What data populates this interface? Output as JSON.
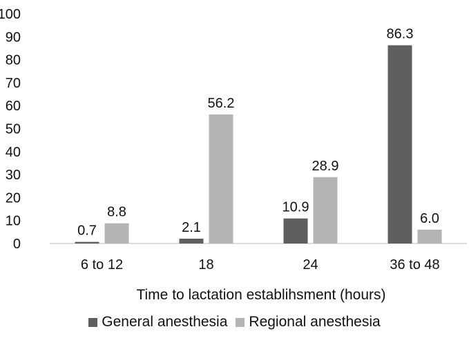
{
  "chart_data": {
    "type": "bar",
    "categories": [
      "6 to 12",
      "18",
      "24",
      "36 to 48"
    ],
    "series": [
      {
        "name": "General anesthesia",
        "values": [
          0.7,
          2.1,
          10.9,
          86.3
        ],
        "color": "#5f5f5f",
        "labels": [
          "0.7",
          "2.1",
          "10.9",
          "86.3"
        ]
      },
      {
        "name": "Regional anesthesia",
        "values": [
          8.8,
          56.2,
          28.9,
          6.0
        ],
        "color": "#b4b4b4",
        "labels": [
          "8.8",
          "56.2",
          "28.9",
          "6.0"
        ]
      }
    ],
    "title": "",
    "xlabel": "Time to lactation establihsment (hours)",
    "ylabel": "",
    "ylim": [
      0,
      100
    ],
    "yticks": [
      "0",
      "10",
      "20",
      "30",
      "40",
      "50",
      "60",
      "70",
      "80",
      "90",
      "100"
    ],
    "grid": false,
    "legend_position": "bottom"
  }
}
